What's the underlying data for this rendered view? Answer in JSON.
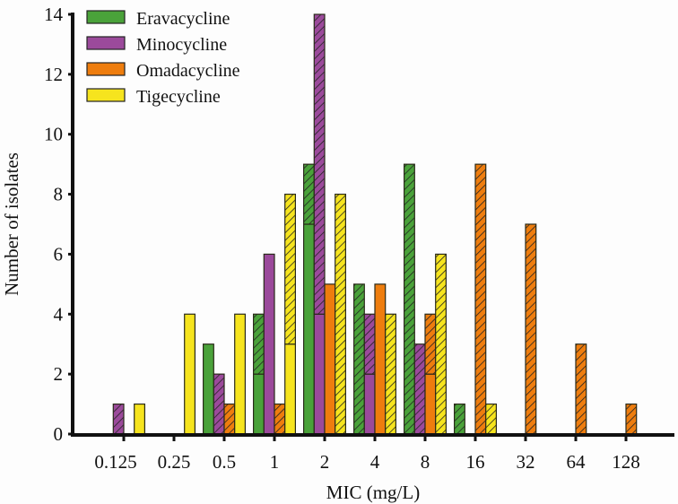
{
  "chart_data": {
    "type": "bar",
    "stacked_segments": [
      "solid",
      "hatched"
    ],
    "xlabel": "MIC (mg/L)",
    "ylabel": "Number of isolates",
    "ylim": [
      0,
      14
    ],
    "yticks": [
      0,
      2,
      4,
      6,
      8,
      10,
      12,
      14
    ],
    "categories": [
      "0.125",
      "0.25",
      "0.5",
      "1",
      "2",
      "4",
      "8",
      "16",
      "32",
      "64",
      "128"
    ],
    "legend_position": "top-left",
    "series": [
      {
        "name": "Eravacycline",
        "color": "#4aa23a",
        "solid": [
          0,
          0,
          3,
          2,
          7,
          0,
          0,
          0,
          0,
          0,
          0
        ],
        "hatched": [
          0,
          0,
          0,
          2,
          2,
          5,
          9,
          1,
          0,
          0,
          0
        ]
      },
      {
        "name": "Minocycline",
        "color": "#9b4a9b",
        "solid": [
          0,
          0,
          0,
          6,
          4,
          2,
          0,
          0,
          0,
          0,
          0
        ],
        "hatched": [
          1,
          0,
          2,
          0,
          10,
          2,
          3,
          0,
          0,
          0,
          0
        ]
      },
      {
        "name": "Omadacycline",
        "color": "#ee7d0e",
        "solid": [
          0,
          0,
          0,
          0,
          5,
          5,
          2,
          0,
          0,
          0,
          0
        ],
        "hatched": [
          0,
          0,
          1,
          1,
          0,
          0,
          2,
          9,
          7,
          3,
          1
        ]
      },
      {
        "name": "Tigecycline",
        "color": "#f6e41e",
        "solid": [
          1,
          4,
          4,
          3,
          0,
          0,
          0,
          0,
          0,
          0,
          0
        ],
        "hatched": [
          0,
          0,
          0,
          5,
          8,
          4,
          6,
          1,
          0,
          0,
          0
        ]
      }
    ]
  }
}
